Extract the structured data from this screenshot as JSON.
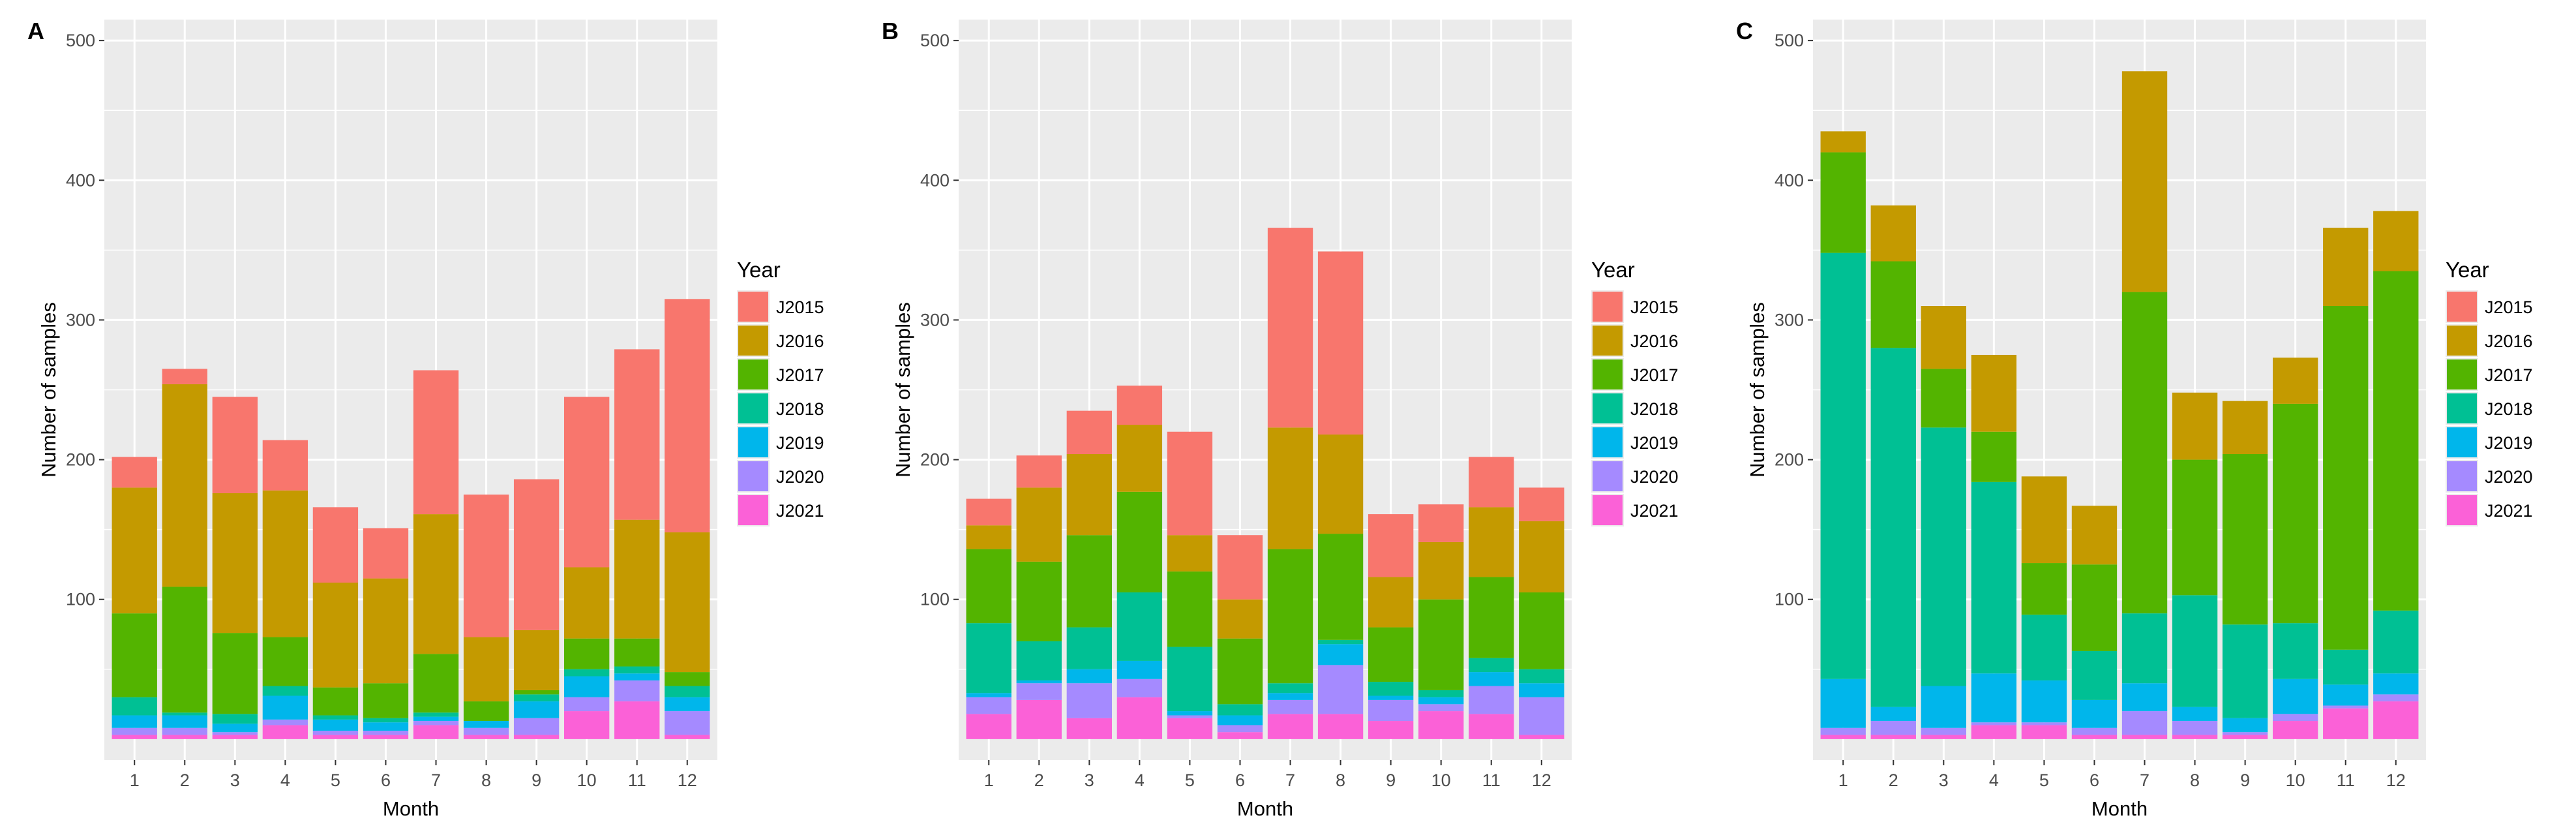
{
  "figure": {
    "legend_title": "Year",
    "legend_entries": [
      "J2015",
      "J2016",
      "J2017",
      "J2018",
      "J2019",
      "J2020",
      "J2021"
    ]
  },
  "colors": {
    "J2015": "#F8766D",
    "J2016": "#C49A00",
    "J2017": "#53B400",
    "J2018": "#00C094",
    "J2019": "#00B6EB",
    "J2020": "#A58AFF",
    "J2021": "#FB61D7",
    "panel_bg": "#EBEBEB",
    "grid": "#FFFFFF",
    "text": "#333333"
  },
  "chart_data": [
    {
      "type": "bar",
      "stacked": true,
      "panel": "A",
      "xlabel": "Month",
      "ylabel": "Number of samples",
      "ylim": [
        -15,
        515
      ],
      "yticks": [
        100,
        200,
        300,
        400,
        500
      ],
      "categories": [
        "1",
        "2",
        "3",
        "4",
        "5",
        "6",
        "7",
        "8",
        "9",
        "10",
        "11",
        "12"
      ],
      "series": [
        {
          "name": "J2021",
          "values": [
            3,
            3,
            3,
            10,
            3,
            3,
            10,
            3,
            3,
            20,
            27,
            3
          ]
        },
        {
          "name": "J2020",
          "values": [
            5,
            5,
            2,
            4,
            3,
            3,
            3,
            5,
            12,
            10,
            15,
            17
          ]
        },
        {
          "name": "J2019",
          "values": [
            9,
            9,
            6,
            17,
            8,
            6,
            3,
            5,
            12,
            15,
            5,
            10
          ]
        },
        {
          "name": "J2018",
          "values": [
            13,
            2,
            7,
            7,
            3,
            3,
            3,
            0,
            5,
            5,
            5,
            8
          ]
        },
        {
          "name": "J2017",
          "values": [
            60,
            90,
            58,
            35,
            20,
            25,
            42,
            14,
            3,
            22,
            20,
            10
          ]
        },
        {
          "name": "J2016",
          "values": [
            90,
            145,
            100,
            105,
            75,
            75,
            100,
            46,
            43,
            51,
            85,
            100
          ]
        },
        {
          "name": "J2015",
          "values": [
            22,
            11,
            69,
            36,
            54,
            36,
            103,
            102,
            108,
            122,
            122,
            167
          ]
        }
      ]
    },
    {
      "type": "bar",
      "stacked": true,
      "panel": "B",
      "xlabel": "Month",
      "ylabel": "Number of samples",
      "ylim": [
        -15,
        515
      ],
      "yticks": [
        100,
        200,
        300,
        400,
        500
      ],
      "categories": [
        "1",
        "2",
        "3",
        "4",
        "5",
        "6",
        "7",
        "8",
        "9",
        "10",
        "11",
        "12"
      ],
      "series": [
        {
          "name": "J2021",
          "values": [
            18,
            28,
            15,
            30,
            15,
            5,
            18,
            18,
            13,
            20,
            18,
            3
          ]
        },
        {
          "name": "J2020",
          "values": [
            12,
            12,
            25,
            13,
            2,
            5,
            10,
            35,
            15,
            5,
            20,
            27
          ]
        },
        {
          "name": "J2019",
          "values": [
            3,
            2,
            10,
            13,
            3,
            7,
            5,
            15,
            3,
            5,
            10,
            10
          ]
        },
        {
          "name": "J2018",
          "values": [
            50,
            28,
            30,
            49,
            46,
            8,
            7,
            3,
            10,
            5,
            10,
            10
          ]
        },
        {
          "name": "J2017",
          "values": [
            53,
            57,
            66,
            72,
            54,
            47,
            96,
            76,
            39,
            65,
            58,
            55
          ]
        },
        {
          "name": "J2016",
          "values": [
            17,
            53,
            58,
            48,
            26,
            28,
            87,
            71,
            36,
            41,
            50,
            51
          ]
        },
        {
          "name": "J2015",
          "values": [
            19,
            23,
            31,
            28,
            74,
            46,
            143,
            131,
            45,
            27,
            36,
            24
          ]
        }
      ]
    },
    {
      "type": "bar",
      "stacked": true,
      "panel": "C",
      "xlabel": "Month",
      "ylabel": "Number of samples",
      "ylim": [
        -15,
        515
      ],
      "yticks": [
        100,
        200,
        300,
        400,
        500
      ],
      "categories": [
        "1",
        "2",
        "3",
        "4",
        "5",
        "6",
        "7",
        "8",
        "9",
        "10",
        "11",
        "12"
      ],
      "series": [
        {
          "name": "J2021",
          "values": [
            3,
            3,
            3,
            10,
            10,
            3,
            3,
            3,
            3,
            13,
            22,
            27
          ]
        },
        {
          "name": "J2020",
          "values": [
            5,
            10,
            5,
            2,
            2,
            5,
            17,
            10,
            2,
            5,
            2,
            5
          ]
        },
        {
          "name": "J2019",
          "values": [
            35,
            10,
            30,
            35,
            30,
            20,
            20,
            10,
            10,
            25,
            15,
            15
          ]
        },
        {
          "name": "J2018",
          "values": [
            305,
            257,
            185,
            137,
            47,
            35,
            50,
            80,
            67,
            40,
            25,
            45
          ]
        },
        {
          "name": "J2017",
          "values": [
            72,
            62,
            42,
            36,
            37,
            62,
            230,
            97,
            122,
            157,
            246,
            243
          ]
        },
        {
          "name": "J2016",
          "values": [
            15,
            40,
            45,
            55,
            62,
            42,
            158,
            48,
            38,
            33,
            56,
            43
          ]
        },
        {
          "name": "J2015",
          "values": [
            0,
            0,
            0,
            0,
            0,
            0,
            0,
            0,
            0,
            0,
            0,
            0
          ]
        }
      ]
    }
  ]
}
